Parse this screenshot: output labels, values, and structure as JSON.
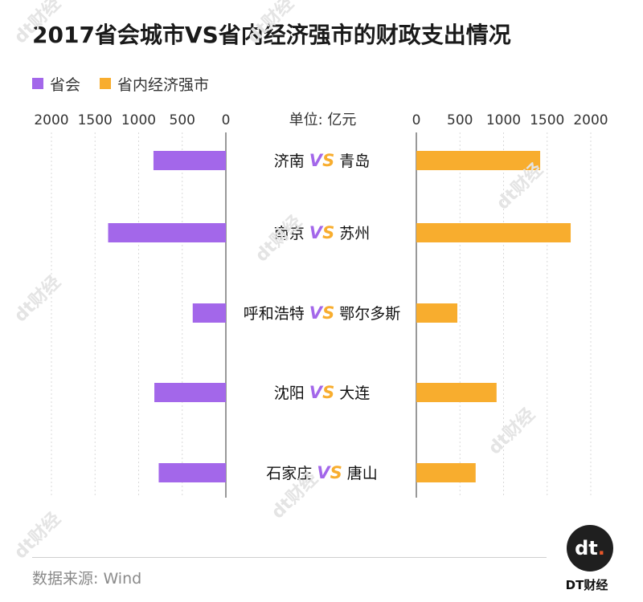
{
  "title": "2017省会城市VS省内经济强市的财政支出情况",
  "legend": [
    {
      "label": "省会",
      "color": "#a367ea"
    },
    {
      "label": "省内经济强市",
      "color": "#f8ad2e"
    }
  ],
  "unit_label": "单位: 亿元",
  "vs_label": "VS",
  "source": "数据来源: Wind",
  "logo": {
    "mark": "dt",
    "brand": "DT财经"
  },
  "watermark_text": "dt财经",
  "chart_data": {
    "type": "bar",
    "unit": "亿元",
    "categories": [
      "济南 VS 青岛",
      "南京 VS 苏州",
      "呼和浩特 VS 鄂尔多斯",
      "沈阳 VS 大连",
      "石家庄 VS 唐山"
    ],
    "left_axis": {
      "ticks": [
        2000,
        1500,
        1000,
        500,
        0
      ],
      "range": [
        0,
        2000
      ]
    },
    "right_axis": {
      "ticks": [
        0,
        500,
        1000,
        1500,
        2000
      ],
      "range": [
        0,
        2000
      ]
    },
    "series": [
      {
        "name": "省会",
        "color": "#a367ea",
        "cities": [
          "济南",
          "南京",
          "呼和浩特",
          "沈阳",
          "石家庄"
        ],
        "values": [
          830,
          1350,
          380,
          820,
          770
        ]
      },
      {
        "name": "省内经济强市",
        "color": "#f8ad2e",
        "cities": [
          "青岛",
          "苏州",
          "鄂尔多斯",
          "大连",
          "唐山"
        ],
        "values": [
          1420,
          1770,
          470,
          920,
          680
        ]
      }
    ]
  }
}
